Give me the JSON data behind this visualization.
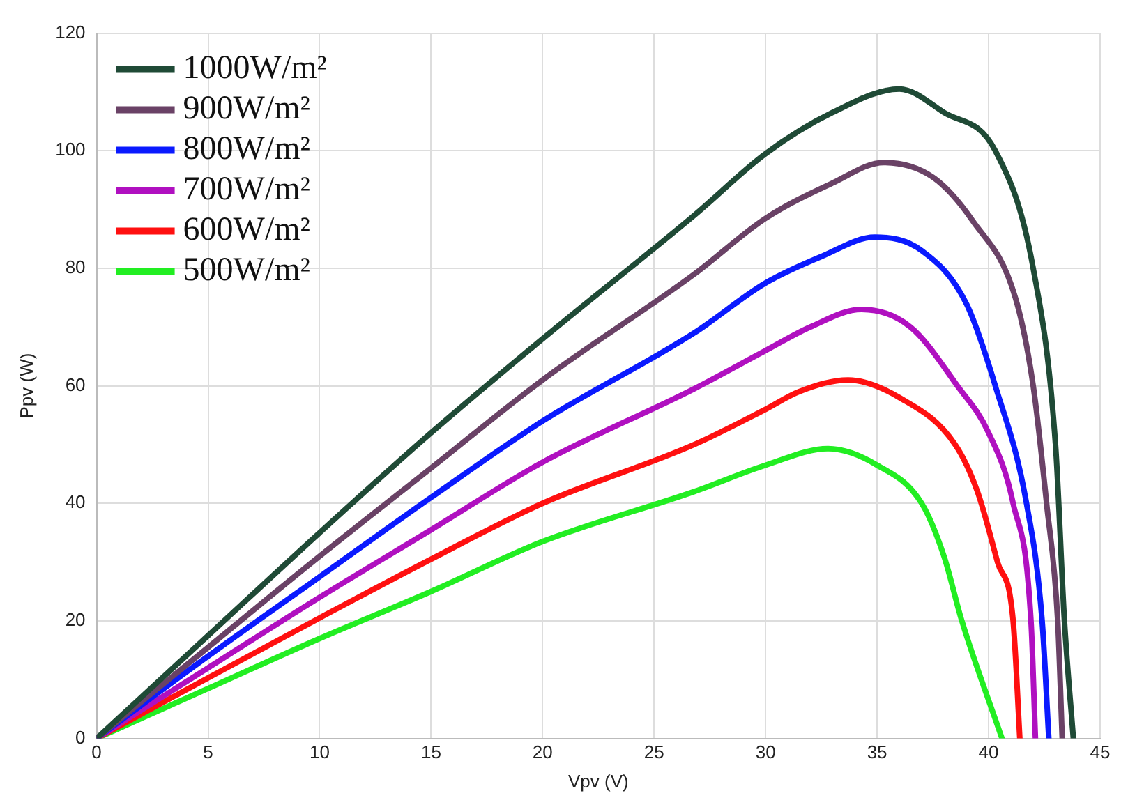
{
  "chart_data": {
    "type": "line",
    "xlabel": "Vpv (V)",
    "ylabel": "Ppv (W)",
    "xlim": [
      0,
      45
    ],
    "xticks": [
      0,
      5,
      10,
      15,
      20,
      25,
      30,
      35,
      40,
      45
    ],
    "ylim": [
      0,
      120
    ],
    "yticks": [
      0,
      20,
      40,
      60,
      80,
      100,
      120
    ],
    "grid": true,
    "legend": "top left",
    "marker": "none",
    "line_style": "solid",
    "series": [
      {
        "name": "1000W/m²",
        "color": "#1f4a36",
        "x": [
          0,
          5,
          10,
          15,
          20,
          26.8,
          30,
          33,
          36,
          38,
          40.3,
          42,
          43,
          43.4,
          43.8
        ],
        "values": [
          0,
          17.5,
          35,
          52,
          68,
          89,
          99.5,
          106.5,
          110.5,
          106.5,
          100,
          80,
          50,
          20,
          0
        ]
      },
      {
        "name": "900W/m²",
        "color": "#6a4266",
        "x": [
          0,
          5,
          10,
          15,
          20,
          26.8,
          30,
          33,
          35.3,
          37.5,
          39.3,
          41.2,
          42,
          42.6,
          43.1,
          43.3
        ],
        "values": [
          0,
          15.5,
          31,
          46,
          61,
          79,
          88.5,
          94.5,
          98,
          95.5,
          88,
          75,
          60,
          40,
          20,
          0
        ]
      },
      {
        "name": "800W/m²",
        "color": "#0a1aff",
        "x": [
          0,
          5,
          10,
          15,
          20,
          26.8,
          30,
          32.5,
          34.9,
          37,
          39,
          40.3,
          41.7,
          42.4,
          42.7
        ],
        "values": [
          0,
          14,
          27.5,
          41,
          54,
          69,
          77.5,
          82,
          85.3,
          83,
          74,
          60,
          40,
          20,
          0
        ]
      },
      {
        "name": "700W/m²",
        "color": "#b010c0",
        "x": [
          0,
          5,
          10,
          15,
          20,
          26.8,
          30,
          32,
          34.3,
          36.5,
          38.6,
          40,
          41.1,
          41.9,
          42.1
        ],
        "values": [
          0,
          12,
          24,
          35.5,
          47,
          59.5,
          66,
          70,
          73,
          70,
          60,
          52,
          40,
          20,
          0
        ]
      },
      {
        "name": "600W/m²",
        "color": "#ff1010",
        "x": [
          0,
          5,
          10,
          15,
          20,
          26.8,
          30,
          31.5,
          33.7,
          36,
          38.5,
          39.5,
          40.4,
          41.1,
          41.4
        ],
        "values": [
          0,
          10.3,
          20.5,
          30.5,
          40,
          50,
          56,
          59,
          61,
          58,
          50,
          42,
          30,
          20,
          0
        ]
      },
      {
        "name": "500W/m²",
        "color": "#22ee22",
        "x": [
          0,
          5,
          10,
          15,
          20,
          26.8,
          30,
          32.8,
          35,
          37,
          38,
          38.8,
          40.6
        ],
        "values": [
          0,
          8.5,
          17,
          25,
          33.5,
          42,
          46.5,
          49.3,
          46.5,
          40,
          31,
          20,
          0
        ]
      }
    ]
  }
}
